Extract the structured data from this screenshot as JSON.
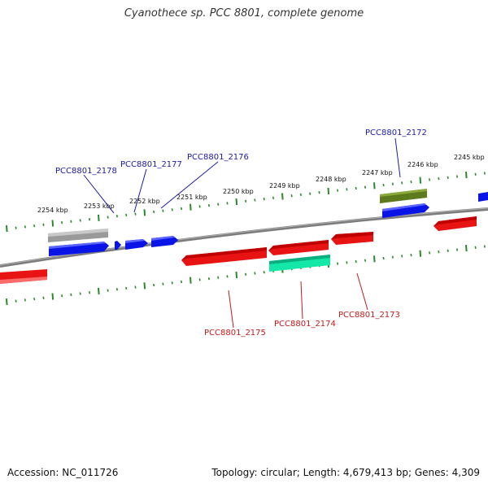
{
  "title": "Cyanothece sp. PCC 8801, complete genome",
  "footer": {
    "accession": "Accession: NC_011726",
    "summary": "Topology: circular; Length: 4,679,413 bp; Genes: 4,309"
  },
  "scale_labels": [
    "2254 kbp",
    "2253 kbp",
    "2252 kbp",
    "2251 kbp",
    "2250 kbp",
    "2249 kbp",
    "2248 kbp",
    "2247 kbp",
    "2246 kbp",
    "2245 kbp"
  ],
  "gene_labels": {
    "forward": [
      "PCC8801_2178",
      "PCC8801_2177",
      "PCC8801_2176",
      "PCC8801_2172"
    ],
    "reverse": [
      "PCC8801_2175",
      "PCC8801_2174",
      "PCC8801_2173"
    ]
  },
  "colors": {
    "forward_label": "#1a1aa8",
    "reverse_label": "#c41a1a",
    "blue_gene": "#0a14e6",
    "red_gene": "#e81414",
    "gray_gene": "#a8a8a8",
    "olive_gene": "#5e7a1e",
    "teal_gene": "#14e8a8",
    "backbone": "#808080",
    "ticks": "#2a8a2a"
  }
}
